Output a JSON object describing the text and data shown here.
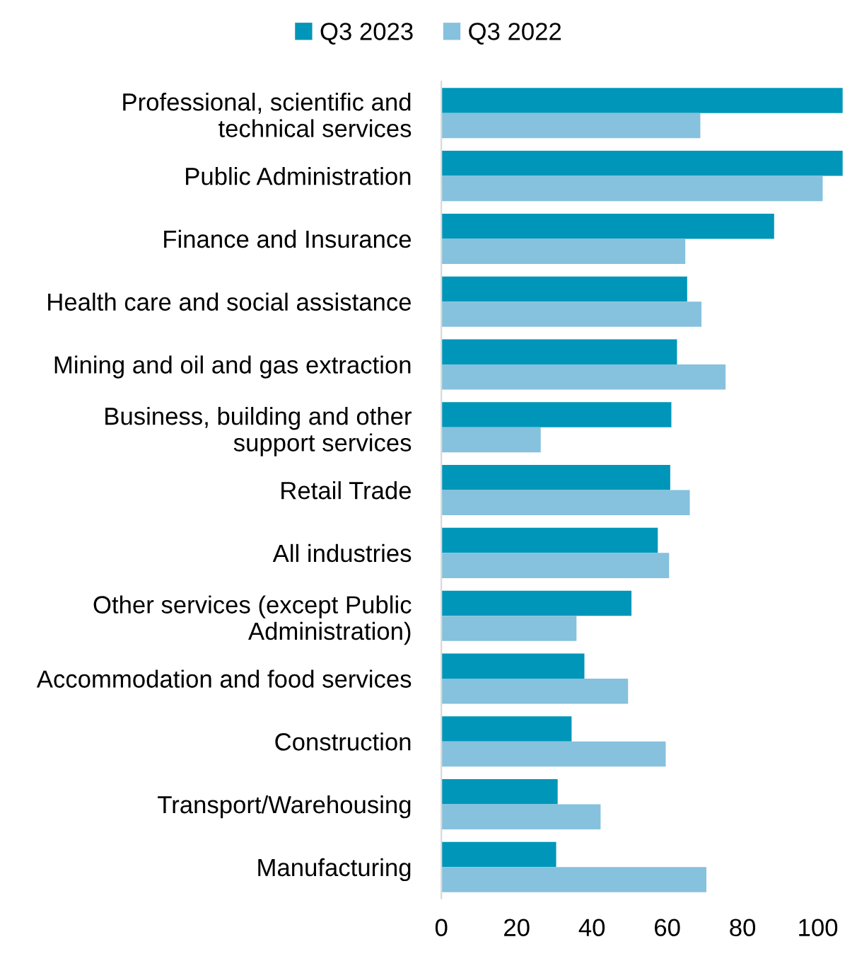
{
  "chart_data": {
    "type": "bar",
    "orientation": "horizontal",
    "legend": "top",
    "grid": false,
    "categories": [
      "Professional, scientific and\ntechnical services",
      "Public Administration",
      "Finance and Insurance",
      "Health care and social assistance",
      "Mining and oil and gas extraction",
      "Business, building and other\nsupport services",
      "Retail Trade",
      "All industries",
      "Other services (except Public\nAdministration)",
      "Accommodation and food services",
      "Construction",
      "Transport/Warehousing",
      "Manufacturing"
    ],
    "series": [
      {
        "name": "Q3 2023",
        "color": "#0096b9",
        "values": [
          106.6,
          106.6,
          88.4,
          65.3,
          62.6,
          61.1,
          60.8,
          57.5,
          50.5,
          38,
          34.6,
          30.9,
          30.5
        ]
      },
      {
        "name": "Q3 2022",
        "color": "#86c1dd",
        "values": [
          68.8,
          101.3,
          64.8,
          69.1,
          75.5,
          26.4,
          66,
          60.5,
          35.9,
          49.6,
          59.6,
          42.3,
          70.4
        ]
      }
    ],
    "xlim": [
      0,
      107
    ],
    "xticks": [
      0,
      20,
      40,
      60,
      80,
      100
    ]
  }
}
